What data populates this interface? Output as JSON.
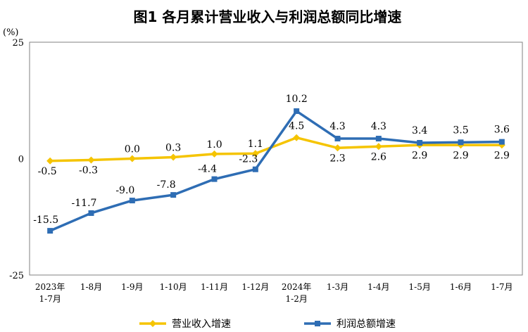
{
  "chart_data": {
    "type": "line",
    "title": "图1  各月累计营业收入与利润总额同比增速",
    "unit_label": "(%)",
    "ylim": [
      -25,
      25
    ],
    "y_ticks": [
      "25",
      "0",
      "-25"
    ],
    "categories": [
      [
        "2023年",
        "1-7月"
      ],
      [
        "1-8月"
      ],
      [
        "1-9月"
      ],
      [
        "1-10月"
      ],
      [
        "1-11月"
      ],
      [
        "1-12月"
      ],
      [
        "2024年",
        "1-2月"
      ],
      [
        "1-3月"
      ],
      [
        "1-4月"
      ],
      [
        "1-5月"
      ],
      [
        "1-6月"
      ],
      [
        "1-7月"
      ]
    ],
    "series": [
      {
        "name": "营业收入增速",
        "color": "#F5C400",
        "marker": "diamond",
        "values": [
          -0.5,
          -0.3,
          0.0,
          0.3,
          1.0,
          1.1,
          4.5,
          2.3,
          2.6,
          2.9,
          2.9,
          2.9
        ],
        "labels": [
          "-0.5",
          "-0.3",
          "0.0",
          "0.3",
          "1.0",
          "1.1",
          "4.5",
          "2.3",
          "2.6",
          "2.9",
          "2.9",
          "2.9"
        ]
      },
      {
        "name": "利润总额增速",
        "color": "#2E6DB4",
        "marker": "square",
        "values": [
          -15.5,
          -11.7,
          -9.0,
          -7.8,
          -4.4,
          -2.3,
          10.2,
          4.3,
          4.3,
          3.4,
          3.5,
          3.6
        ],
        "labels": [
          "-15.5",
          "-11.7",
          "-9.0",
          "-7.8",
          "-4.4",
          "-2.3",
          "10.2",
          "4.3",
          "4.3",
          "3.4",
          "3.5",
          "3.6"
        ]
      }
    ],
    "legend_position": "bottom",
    "grid": false
  }
}
